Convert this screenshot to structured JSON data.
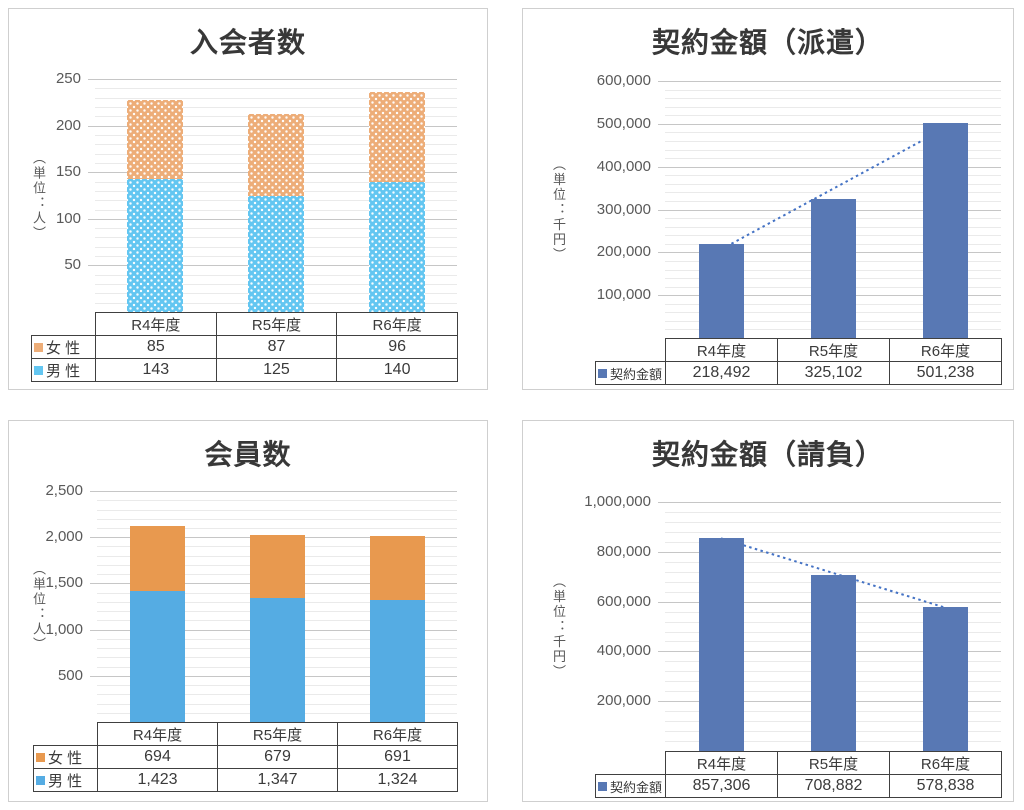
{
  "chart_data": [
    {
      "type": "bar",
      "subtype": "stacked",
      "title": "入会者数",
      "unit_label": "（単位：人）",
      "categories": [
        "R4年度",
        "R5年度",
        "R6年度"
      ],
      "series": [
        {
          "name": "女 性",
          "values": [
            85,
            87,
            96
          ],
          "display": [
            "85",
            "87",
            "96"
          ],
          "color": "#EDAD78",
          "pattern": "dots"
        },
        {
          "name": "男 性",
          "values": [
            143,
            125,
            140
          ],
          "display": [
            "143",
            "125",
            "140"
          ],
          "color": "#63C6F1",
          "pattern": "dots"
        }
      ],
      "stack_bottom_to_top": [
        "男 性",
        "女 性"
      ],
      "axis": {
        "ymin": 0,
        "ymax": 250,
        "major": 50,
        "minor": 10,
        "tick_labels": [
          "50",
          "100",
          "150",
          "200",
          "250"
        ]
      },
      "grid": true,
      "legend_position": "table-left",
      "trendline": false
    },
    {
      "type": "bar",
      "subtype": "single",
      "title": "契約金額（派遣）",
      "unit_label": "（単位：千円）",
      "categories": [
        "R4年度",
        "R5年度",
        "R6年度"
      ],
      "series": [
        {
          "name": "契約金額",
          "values": [
            218492,
            325102,
            501238
          ],
          "display": [
            "218,492",
            "325,102",
            "501,238"
          ],
          "color": "#5878B4"
        }
      ],
      "axis": {
        "ymin": 0,
        "ymax": 600000,
        "major": 100000,
        "minor": 20000,
        "tick_labels": [
          "100,000",
          "200,000",
          "300,000",
          "400,000",
          "500,000",
          "600,000"
        ]
      },
      "grid": true,
      "legend_position": "table-left",
      "trendline": true,
      "trendline_color": "#4472C4"
    },
    {
      "type": "bar",
      "subtype": "stacked",
      "title": "会員数",
      "unit_label": "（単位：人）",
      "categories": [
        "R4年度",
        "R5年度",
        "R6年度"
      ],
      "series": [
        {
          "name": "女 性",
          "values": [
            694,
            679,
            691
          ],
          "display": [
            "694",
            "679",
            "691"
          ],
          "color": "#E8994F"
        },
        {
          "name": "男 性",
          "values": [
            1423,
            1347,
            1324
          ],
          "display": [
            "1,423",
            "1,347",
            "1,324"
          ],
          "color": "#55ACE3"
        }
      ],
      "stack_bottom_to_top": [
        "男 性",
        "女 性"
      ],
      "axis": {
        "ymin": 0,
        "ymax": 2500,
        "major": 500,
        "minor": 100,
        "tick_labels": [
          "500",
          "1,000",
          "1,500",
          "2,000",
          "2,500"
        ]
      },
      "grid": true,
      "legend_position": "table-left",
      "trendline": false
    },
    {
      "type": "bar",
      "subtype": "single",
      "title": "契約金額（請負）",
      "unit_label": "（単位：千円）",
      "categories": [
        "R4年度",
        "R5年度",
        "R6年度"
      ],
      "series": [
        {
          "name": "契約金額",
          "values": [
            857306,
            708882,
            578838
          ],
          "display": [
            "857,306",
            "708,882",
            "578,838"
          ],
          "color": "#5878B4"
        }
      ],
      "axis": {
        "ymin": 0,
        "ymax": 1000000,
        "major": 200000,
        "minor": 40000,
        "tick_labels": [
          "200,000",
          "400,000",
          "600,000",
          "800,000",
          "1,000,000"
        ]
      },
      "grid": true,
      "legend_position": "table-left",
      "trendline": true,
      "trendline_color": "#4472C4"
    }
  ],
  "theme": {
    "grid_major": "#C6C6C6",
    "grid_minor": "#EAEAEA",
    "tick_text": "#595959",
    "table_border": "#404040",
    "panel_border": "#CFCFCF",
    "title_text": "#383838",
    "background": "#FFFFFF"
  }
}
